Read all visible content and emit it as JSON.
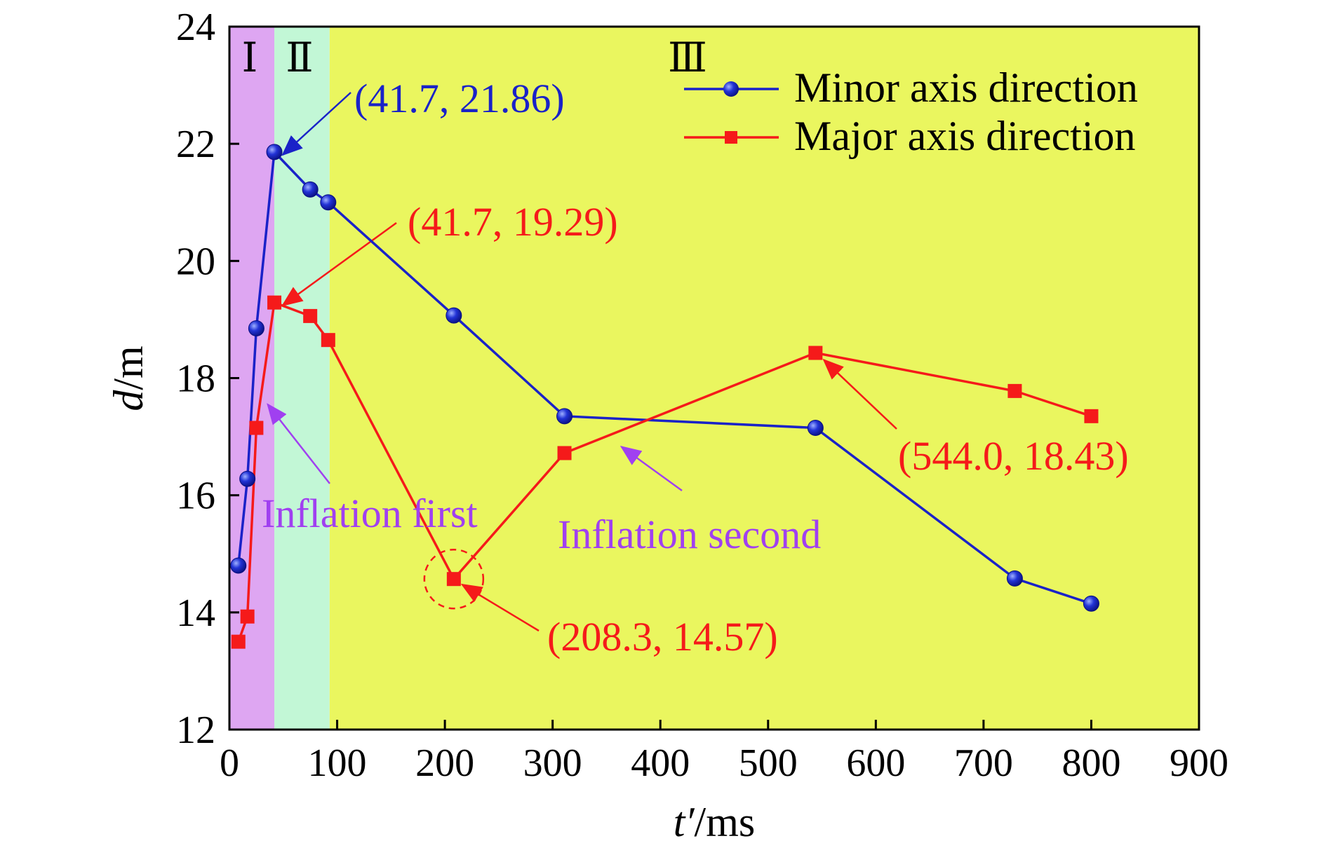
{
  "chart_data": {
    "type": "line",
    "xlabel_main": "t′",
    "xlabel_unit": "/ms",
    "ylabel_main": "d",
    "ylabel_unit": "/m",
    "xlim": [
      0,
      900
    ],
    "ylim": [
      12,
      24
    ],
    "xticks": [
      0,
      100,
      200,
      300,
      400,
      500,
      600,
      700,
      800,
      900
    ],
    "yticks": [
      12,
      14,
      16,
      18,
      20,
      22,
      24
    ],
    "legend_position": "top-right",
    "regions": [
      {
        "label": "Ⅰ",
        "x": [
          0,
          41.7
        ],
        "color": "#dea6f2"
      },
      {
        "label": "Ⅱ",
        "x": [
          41.7,
          93
        ],
        "color": "#c2f7d6"
      },
      {
        "label": "Ⅲ",
        "x": [
          93,
          900
        ],
        "color": "#eaf65f"
      }
    ],
    "series": [
      {
        "name": "Minor axis direction",
        "color": "#1a22c8",
        "marker": "circle",
        "x": [
          8.3,
          16.7,
          25,
          41.7,
          75,
          91.7,
          208.3,
          311,
          544,
          729,
          800
        ],
        "y": [
          14.8,
          16.28,
          18.85,
          21.86,
          21.22,
          21.0,
          19.07,
          17.35,
          17.15,
          14.58,
          14.15
        ]
      },
      {
        "name": "Major axis direction",
        "color": "#f51a1a",
        "marker": "square",
        "x": [
          8.3,
          16.7,
          25,
          41.7,
          75,
          91.7,
          208.3,
          311,
          544,
          729,
          800
        ],
        "y": [
          13.5,
          13.93,
          17.15,
          19.29,
          19.06,
          18.65,
          14.57,
          16.72,
          18.43,
          17.78,
          17.35
        ]
      }
    ],
    "annotations": [
      {
        "text": "(41.7, 21.86)",
        "color": "#1a22c8"
      },
      {
        "text": "(41.7, 19.29)",
        "color": "#f51a1a"
      },
      {
        "text": "(208.3, 14.57)",
        "color": "#f51a1a"
      },
      {
        "text": "(544.0, 18.43)",
        "color": "#f51a1a"
      },
      {
        "text": "Inflation first",
        "color": "#a040f0"
      },
      {
        "text": "Inflation second",
        "color": "#a040f0"
      }
    ]
  }
}
